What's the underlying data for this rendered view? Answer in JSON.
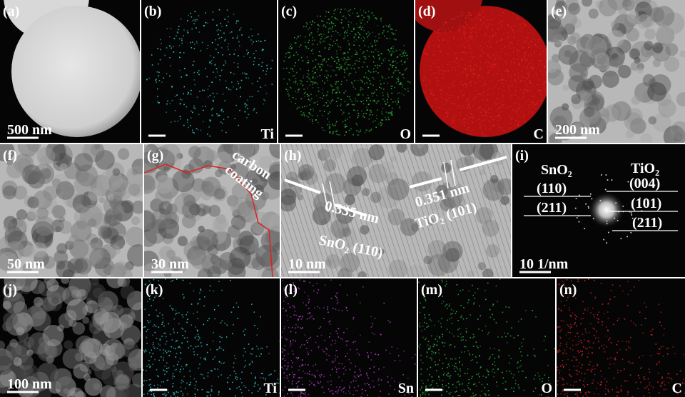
{
  "panels": [
    {
      "label": "(a)",
      "scale_bar": "500 nm"
    },
    {
      "label": "(b)",
      "element": "Ti"
    },
    {
      "label": "(c)",
      "element": "O"
    },
    {
      "label": "(d)",
      "element": "C"
    },
    {
      "label": "(e)",
      "scale_bar": "200 nm"
    },
    {
      "label": "(f)",
      "scale_bar": "50 nm"
    },
    {
      "label": "(g)",
      "scale_bar": "30 nm",
      "annotation": [
        "carbon",
        "coating"
      ]
    },
    {
      "label": "(h)",
      "scale_bar": "10 nm",
      "annotations": [
        "0.335 nm",
        "SnO₂ (110)",
        "0.351 nm",
        "TiO₂ (101)"
      ]
    },
    {
      "label": "(i)",
      "scale_bar": "10 1/nm",
      "phases": [
        "SnO₂",
        "TiO₂"
      ],
      "rings_left": [
        "(110)",
        "(211)"
      ],
      "rings_right": [
        "(004)",
        "(101)",
        "(211)"
      ]
    },
    {
      "label": "(j)",
      "scale_bar": "100 nm"
    },
    {
      "label": "(k)",
      "element": "Ti"
    },
    {
      "label": "(l)",
      "element": "Sn"
    },
    {
      "label": "(m)",
      "element": "O"
    },
    {
      "label": "(n)",
      "element": "C"
    }
  ]
}
